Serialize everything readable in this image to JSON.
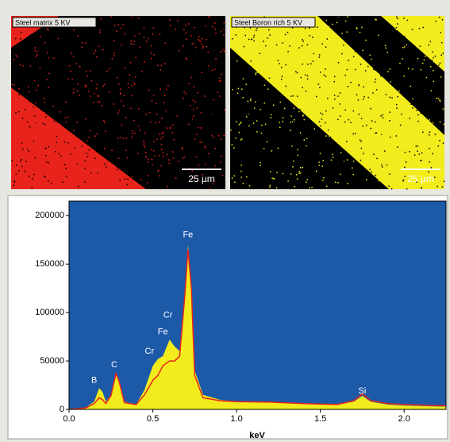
{
  "panels": [
    {
      "label": "Steel matrix 5 KV",
      "scale": "25 µm"
    },
    {
      "label": "Steel Boron  rich 5 KV",
      "scale": "25 µm"
    }
  ],
  "chart_data": {
    "type": "area",
    "xlabel": "keV",
    "x": [
      0,
      0.1,
      0.15,
      0.18,
      0.2,
      0.22,
      0.25,
      0.28,
      0.3,
      0.33,
      0.4,
      0.45,
      0.5,
      0.53,
      0.56,
      0.6,
      0.63,
      0.66,
      0.69,
      0.71,
      0.73,
      0.75,
      0.8,
      0.9,
      1.0,
      1.2,
      1.4,
      1.6,
      1.7,
      1.75,
      1.8,
      1.9,
      2.0,
      2.2,
      2.25
    ],
    "series": [
      {
        "color": "#f2ec1c",
        "values": [
          0,
          2000,
          8000,
          22000,
          18000,
          8000,
          15000,
          38000,
          30000,
          8000,
          5000,
          20000,
          45000,
          52000,
          55000,
          72000,
          65000,
          60000,
          110000,
          170000,
          130000,
          40000,
          15000,
          10000,
          8000,
          8000,
          6000,
          5000,
          8000,
          14000,
          8000,
          5000,
          4000,
          3000,
          3000
        ]
      },
      {
        "color": "#e8231c",
        "values": [
          0,
          1500,
          6000,
          12000,
          10000,
          6000,
          14000,
          37000,
          28000,
          7000,
          5000,
          15000,
          30000,
          35000,
          45000,
          50000,
          50000,
          55000,
          115000,
          165000,
          125000,
          35000,
          12000,
          9000,
          8000,
          7500,
          6000,
          5000,
          9000,
          16000,
          9000,
          6000,
          5000,
          4000,
          4000
        ]
      }
    ],
    "annotations": [
      {
        "text": "B",
        "x": 0.15,
        "y": 30000
      },
      {
        "text": "C",
        "x": 0.27,
        "y": 46000
      },
      {
        "text": "Cr",
        "x": 0.48,
        "y": 60000
      },
      {
        "text": "Fe",
        "x": 0.56,
        "y": 80000
      },
      {
        "text": "Cr",
        "x": 0.59,
        "y": 97000
      },
      {
        "text": "Fe",
        "x": 0.71,
        "y": 180000
      },
      {
        "text": "Si",
        "x": 1.75,
        "y": 19000
      }
    ],
    "xlim": [
      0,
      2.25
    ],
    "ylim": [
      0,
      215000
    ],
    "xticks": [
      {
        "value": 0,
        "label": "0.0"
      },
      0.5,
      {
        "value": 1,
        "label": "1.0"
      },
      1.5,
      {
        "value": 2,
        "label": "2.0"
      }
    ],
    "yticks": [
      0,
      50000,
      100000,
      150000,
      200000
    ]
  }
}
